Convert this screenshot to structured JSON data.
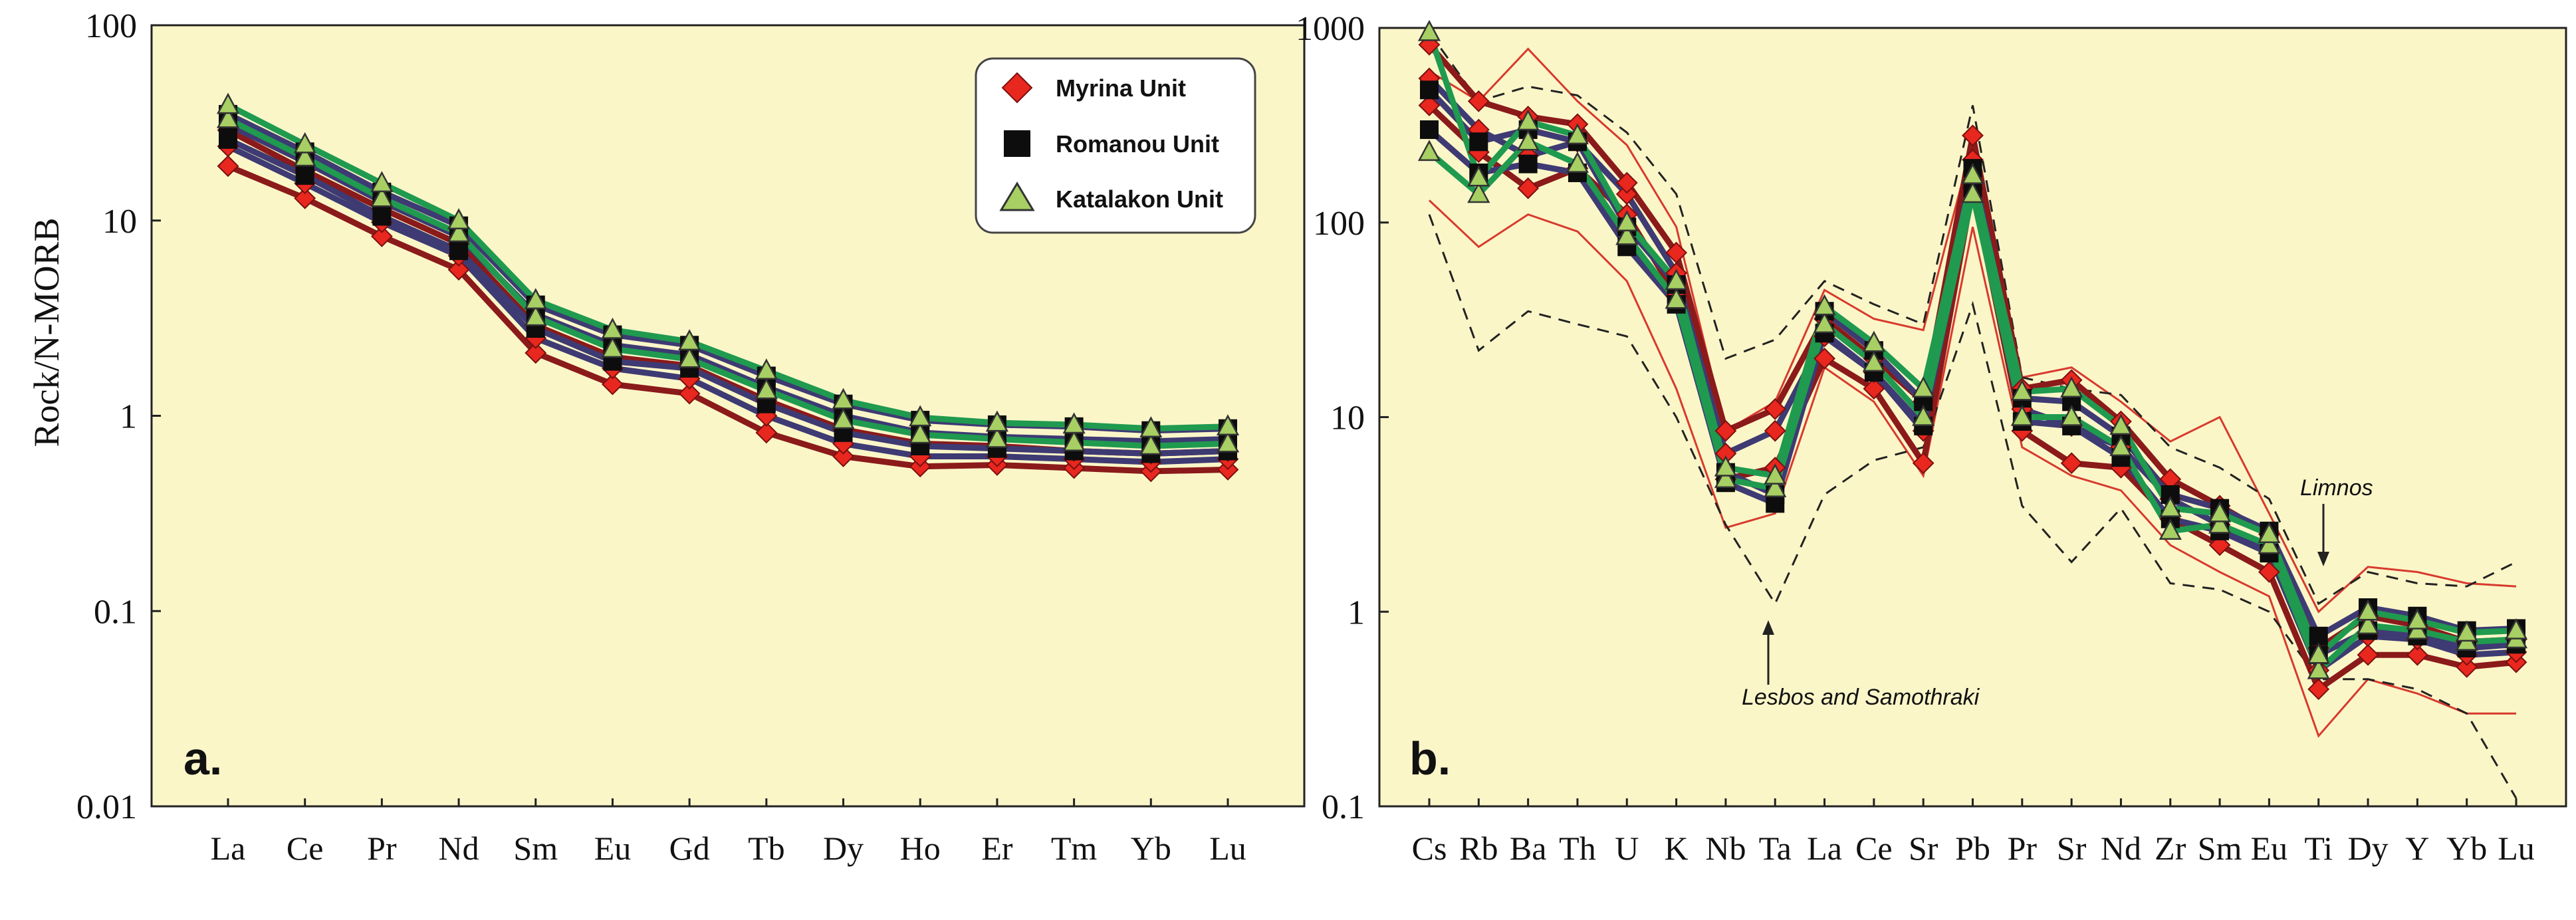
{
  "colors": {
    "plot_bg": "#fbf6c8",
    "myrina": "#e8271f",
    "romanou": "#0d0d0d",
    "katalakon": "#a7cf63",
    "line_purple": "#3e3a73",
    "line_green": "#1f9a4f",
    "line_red": "#8b1a1a",
    "envelope_red": "#d83a2e",
    "envelope_dash": "#222222"
  },
  "legend": {
    "items": [
      {
        "label": "Myrina Unit",
        "marker": "diamond",
        "color": "#e8271f"
      },
      {
        "label": "Romanou Unit",
        "marker": "square",
        "color": "#0d0d0d"
      },
      {
        "label": "Katalakon Unit",
        "marker": "triangle",
        "color": "#a7cf63"
      }
    ]
  },
  "chart_data": [
    {
      "type": "line",
      "panel_label": "a.",
      "title": "",
      "ylabel": "Rock/N-MORB",
      "xlabel": "",
      "yscale": "log",
      "ylim": [
        0.01,
        100
      ],
      "yticks": [
        "0.01",
        "0.1",
        "1",
        "10",
        "100"
      ],
      "ytick_values": [
        0.01,
        0.1,
        1,
        10,
        100
      ],
      "categories": [
        "La",
        "Ce",
        "Pr",
        "Nd",
        "Sm",
        "Eu",
        "Gd",
        "Tb",
        "Dy",
        "Ho",
        "Er",
        "Tm",
        "Yb",
        "Lu"
      ],
      "series": [
        {
          "name": "Myrina Unit (low)",
          "unit": "myrina",
          "values": [
            19,
            13,
            8.3,
            5.6,
            2.1,
            1.45,
            1.3,
            0.82,
            0.62,
            0.55,
            0.56,
            0.54,
            0.52,
            0.53
          ]
        },
        {
          "name": "Myrina Unit (mid)",
          "unit": "myrina",
          "values": [
            24,
            15.5,
            9.8,
            6.6,
            2.5,
            1.75,
            1.55,
            1.0,
            0.72,
            0.62,
            0.62,
            0.6,
            0.58,
            0.6
          ]
        },
        {
          "name": "Myrina Unit (high)",
          "unit": "myrina",
          "values": [
            29,
            18,
            11.5,
            7.6,
            2.9,
            2.0,
            1.8,
            1.2,
            0.85,
            0.72,
            0.7,
            0.66,
            0.64,
            0.66
          ]
        },
        {
          "name": "Romanou Unit (low)",
          "unit": "romanou",
          "values": [
            26,
            17,
            10.5,
            7.0,
            2.8,
            1.9,
            1.75,
            1.15,
            0.82,
            0.7,
            0.68,
            0.66,
            0.64,
            0.66
          ]
        },
        {
          "name": "Romanou Unit (mid)",
          "unit": "romanou",
          "values": [
            31,
            20,
            12.5,
            8.3,
            3.3,
            2.3,
            2.05,
            1.4,
            1.0,
            0.82,
            0.78,
            0.76,
            0.74,
            0.76
          ]
        },
        {
          "name": "Romanou Unit (high)",
          "unit": "romanou",
          "values": [
            35,
            22.5,
            14,
            9.4,
            3.7,
            2.6,
            2.3,
            1.6,
            1.15,
            0.95,
            0.9,
            0.88,
            0.84,
            0.86
          ]
        },
        {
          "name": "Katalakon Unit (low)",
          "unit": "katalakon",
          "values": [
            33,
            21,
            13,
            8.6,
            3.2,
            2.2,
            1.95,
            1.35,
            0.95,
            0.8,
            0.76,
            0.73,
            0.7,
            0.72
          ]
        },
        {
          "name": "Katalakon Unit (high)",
          "unit": "katalakon",
          "values": [
            39,
            24.5,
            15.5,
            10,
            3.9,
            2.75,
            2.4,
            1.7,
            1.2,
            0.98,
            0.92,
            0.9,
            0.86,
            0.88
          ]
        }
      ]
    },
    {
      "type": "line",
      "panel_label": "b.",
      "title": "",
      "ylabel": "",
      "xlabel": "",
      "yscale": "log",
      "ylim": [
        0.1,
        1000
      ],
      "yticks": [
        "0.1",
        "1",
        "10",
        "100",
        "1000"
      ],
      "ytick_values": [
        0.1,
        1,
        10,
        100,
        1000
      ],
      "categories": [
        "Cs",
        "Rb",
        "Ba",
        "Th",
        "U",
        "K",
        "Nb",
        "Ta",
        "La",
        "Ce",
        "Sr",
        "Pb",
        "Pr",
        "Sr",
        "Nd",
        "Zr",
        "Sm",
        "Eu",
        "Ti",
        "Dy",
        "Y",
        "Yb",
        "Lu"
      ],
      "annotations": [
        {
          "text": "Limnos"
        },
        {
          "text": "Lesbos and Samothraki"
        }
      ],
      "series": [
        {
          "name": "Myrina Unit (low)",
          "unit": "myrina",
          "values": [
            400,
            230,
            150,
            190,
            110,
            42,
            4.8,
            5.5,
            20,
            14,
            5.8,
            150,
            8.5,
            5.8,
            5.5,
            3.0,
            2.2,
            1.6,
            0.4,
            0.6,
            0.6,
            0.52,
            0.55
          ]
        },
        {
          "name": "Myrina Unit (mid)",
          "unit": "myrina",
          "values": [
            550,
            300,
            220,
            260,
            140,
            55,
            6.5,
            8.5,
            26,
            17,
            8.5,
            210,
            11,
            9,
            7,
            3.8,
            2.8,
            2.0,
            0.5,
            0.75,
            0.72,
            0.6,
            0.62
          ]
        },
        {
          "name": "Myrina Unit (high)",
          "unit": "myrina",
          "values": [
            820,
            420,
            350,
            320,
            160,
            70,
            8.5,
            11,
            32,
            20,
            12,
            280,
            14,
            15.5,
            9.5,
            4.8,
            3.5,
            2.5,
            0.65,
            0.95,
            0.85,
            0.7,
            0.72
          ]
        },
        {
          "name": "Romanou Unit (low)",
          "unit": "romanou",
          "values": [
            300,
            180,
            200,
            180,
            75,
            38,
            4.6,
            3.6,
            27,
            17,
            9,
            150,
            9.5,
            9,
            6.2,
            3.0,
            2.6,
            2.0,
            0.6,
            0.8,
            0.75,
            0.65,
            0.68
          ]
        },
        {
          "name": "Romanou Unit (high)",
          "unit": "romanou",
          "values": [
            480,
            260,
            300,
            260,
            95,
            48,
            5.2,
            4.0,
            35,
            22,
            12,
            190,
            12.5,
            12,
            8,
            4.0,
            3.4,
            2.6,
            0.75,
            1.05,
            0.95,
            0.8,
            0.82
          ]
        },
        {
          "name": "Katalakon Unit (low)",
          "unit": "katalakon",
          "values": [
            230,
            140,
            260,
            200,
            85,
            40,
            4.8,
            4.3,
            30,
            19,
            10,
            140,
            10,
            10,
            7,
            2.6,
            2.8,
            2.2,
            0.5,
            0.85,
            0.8,
            0.7,
            0.72
          ]
        },
        {
          "name": "Katalakon Unit (high)",
          "unit": "katalakon",
          "values": [
            950,
            170,
            330,
            280,
            100,
            50,
            5.5,
            5.0,
            37,
            24,
            14,
            175,
            13.5,
            14,
            9,
            3.4,
            3.2,
            2.5,
            0.6,
            1.0,
            0.9,
            0.78,
            0.8
          ]
        }
      ],
      "envelopes": [
        {
          "name": "Limnos upper",
          "style": "red-solid",
          "values": [
            600,
            420,
            780,
            420,
            250,
            95,
            8.5,
            12,
            45,
            32,
            28,
            260,
            16,
            18,
            12,
            7.5,
            10,
            3.2,
            1.0,
            1.7,
            1.6,
            1.4,
            1.35
          ]
        },
        {
          "name": "Limnos lower",
          "style": "red-solid",
          "values": [
            130,
            75,
            110,
            90,
            50,
            14,
            2.7,
            3.2,
            18,
            12,
            5,
            95,
            7,
            5,
            4.2,
            2.2,
            1.6,
            1.2,
            0.23,
            0.45,
            0.38,
            0.3,
            0.3
          ]
        },
        {
          "name": "Lesbos and Samothraki upper",
          "style": "black-dash",
          "values": [
            950,
            420,
            500,
            450,
            290,
            140,
            20,
            25,
            50,
            38,
            30,
            400,
            16,
            14,
            13,
            7,
            5.5,
            3.8,
            1.1,
            1.6,
            1.4,
            1.35,
            1.8
          ]
        },
        {
          "name": "Lesbos and Samothraki lower",
          "style": "black-dash",
          "values": [
            110,
            22,
            35,
            30,
            26,
            10,
            2.8,
            1.1,
            4,
            6,
            7,
            38,
            3.5,
            1.8,
            3.4,
            1.4,
            1.3,
            1.0,
            0.45,
            0.45,
            0.4,
            0.3,
            0.11
          ]
        }
      ]
    }
  ]
}
